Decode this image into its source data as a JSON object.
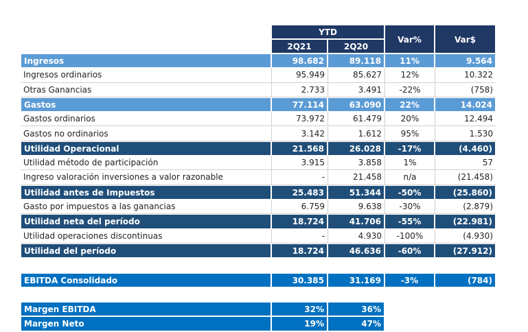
{
  "header": {
    "group": "YTD",
    "columns": [
      "2Q21",
      "2Q20",
      "Var%",
      "Var$"
    ]
  },
  "rows": [
    {
      "label": "Ingresos",
      "cells": [
        "98.682",
        "89.118",
        "11%",
        "9.564"
      ]
    },
    {
      "label": "Ingresos ordinarios",
      "cells": [
        "95.949",
        "85.627",
        "12%",
        "10.322"
      ]
    },
    {
      "label": "Otras Ganancias",
      "cells": [
        "2.733",
        "3.491",
        "-22%",
        "(758)"
      ]
    },
    {
      "label": "Gastos",
      "cells": [
        "77.114",
        "63.090",
        "22%",
        "14.024"
      ]
    },
    {
      "label": "Gastos ordinarios",
      "cells": [
        "73.972",
        "61.479",
        "20%",
        "12.494"
      ]
    },
    {
      "label": "Gastos no ordinarios",
      "cells": [
        "3.142",
        "1.612",
        "95%",
        "1.530"
      ]
    },
    {
      "label": "Utilidad Operacional",
      "cells": [
        "21.568",
        "26.028",
        "-17%",
        "(4.460)"
      ]
    },
    {
      "label": "Utilidad método de participación",
      "cells": [
        "3.915",
        "3.858",
        "1%",
        "57"
      ]
    },
    {
      "label": "Ingreso valoración inversiones a valor razonable",
      "cells": [
        "-",
        "21.458",
        "n/a",
        "(21.458)"
      ]
    },
    {
      "label": "Utilidad antes de Impuestos",
      "cells": [
        "25.483",
        "51.344",
        "-50%",
        "(25.860)"
      ]
    },
    {
      "label": "Gasto por impuestos a las ganancias",
      "cells": [
        "6.759",
        "9.638",
        "-30%",
        "(2.879)"
      ]
    },
    {
      "label": "Utilidad neta del período",
      "cells": [
        "18.724",
        "41.706",
        "-55%",
        "(22.981)"
      ]
    },
    {
      "label": "Utilidad operaciones discontinuas",
      "cells": [
        "-",
        "4.930",
        "-100%",
        "(4.930)"
      ]
    },
    {
      "label": "Utilidad del período",
      "cells": [
        "18.724",
        "46.636",
        "-60%",
        "(27.912)"
      ]
    }
  ],
  "ebitda": {
    "label": "EBITDA Consolidado",
    "cells": [
      "30.385",
      "31.169",
      "-3%",
      "(784)"
    ]
  },
  "margins": [
    {
      "label": "Margen EBITDA",
      "cells": [
        "32%",
        "36%"
      ]
    },
    {
      "label": "Margen Neto",
      "cells": [
        "19%",
        "47%"
      ]
    }
  ]
}
